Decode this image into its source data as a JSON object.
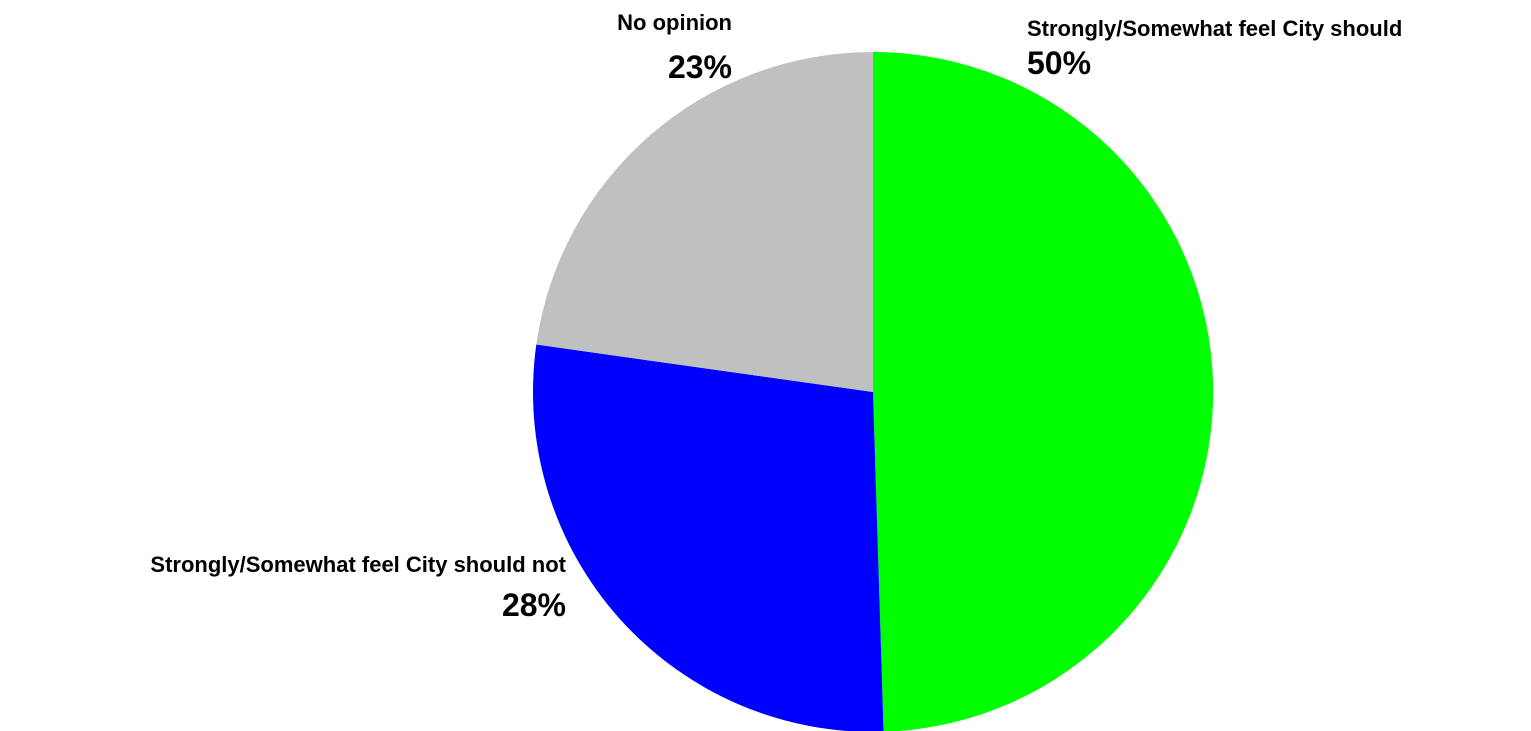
{
  "chart_data": {
    "type": "pie",
    "slices": [
      {
        "label": "Strongly/Somewhat feel City should",
        "value": 50,
        "value_label": "50%",
        "color": "#00ff00"
      },
      {
        "label": "Strongly/Somewhat feel City should not",
        "value": 28,
        "value_label": "28%",
        "color": "#0000ff"
      },
      {
        "label": "No opinion",
        "value": 23,
        "value_label": "23%",
        "color": "#c0c0c0"
      }
    ],
    "start": "12 o'clock",
    "direction": "clockwise",
    "labels": "outside"
  }
}
